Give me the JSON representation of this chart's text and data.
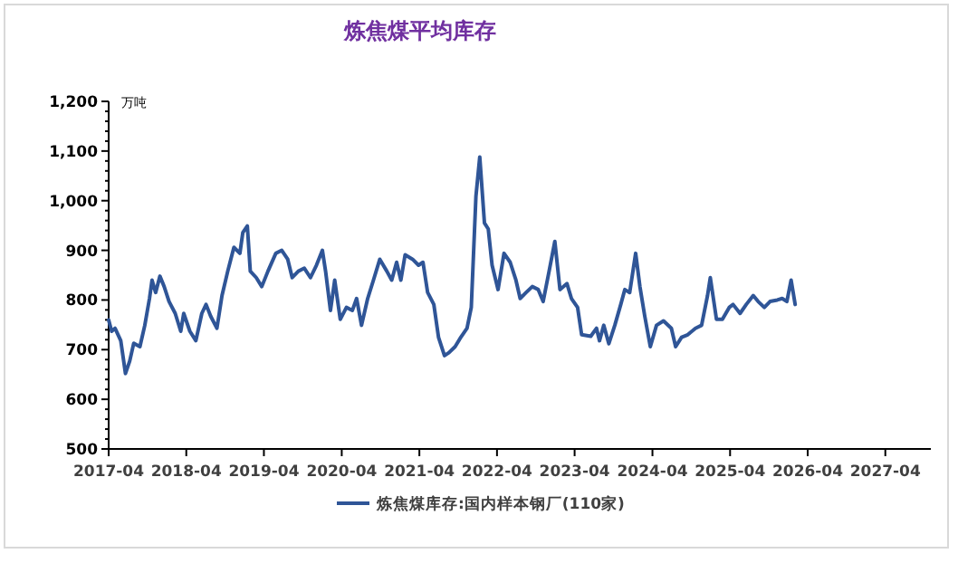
{
  "chart_data": {
    "type": "line",
    "title": "炼焦煤平均库存",
    "ylabel": "万吨",
    "legend": "bottom",
    "grid": false,
    "marker": "none",
    "line_style": "solid",
    "xlim": [
      "2017-04",
      "2027-11"
    ],
    "xticks": [
      "2017-04",
      "2018-04",
      "2019-04",
      "2020-04",
      "2021-04",
      "2022-04",
      "2023-04",
      "2024-04",
      "2025-04",
      "2026-04",
      "2027-04"
    ],
    "ylim": [
      500,
      1200
    ],
    "yticks": [
      {
        "value": 500,
        "label": "500"
      },
      {
        "value": 520,
        "label": null
      },
      {
        "value": 540,
        "label": null
      },
      {
        "value": 560,
        "label": null
      },
      {
        "value": 580,
        "label": null
      },
      {
        "value": 600,
        "label": "600"
      },
      {
        "value": 620,
        "label": null
      },
      {
        "value": 640,
        "label": null
      },
      {
        "value": 660,
        "label": null
      },
      {
        "value": 680,
        "label": null
      },
      {
        "value": 700,
        "label": "700"
      },
      {
        "value": 720,
        "label": null
      },
      {
        "value": 740,
        "label": null
      },
      {
        "value": 760,
        "label": null
      },
      {
        "value": 780,
        "label": null
      },
      {
        "value": 800,
        "label": "800"
      },
      {
        "value": 820,
        "label": null
      },
      {
        "value": 840,
        "label": null
      },
      {
        "value": 860,
        "label": null
      },
      {
        "value": 880,
        "label": null
      },
      {
        "value": 900,
        "label": "900"
      },
      {
        "value": 920,
        "label": null
      },
      {
        "value": 940,
        "label": null
      },
      {
        "value": 960,
        "label": null
      },
      {
        "value": 980,
        "label": null
      },
      {
        "value": 1000,
        "label": "1,000"
      },
      {
        "value": 1020,
        "label": null
      },
      {
        "value": 1040,
        "label": null
      },
      {
        "value": 1060,
        "label": null
      },
      {
        "value": 1080,
        "label": null
      },
      {
        "value": 1100,
        "label": "1,100"
      },
      {
        "value": 1120,
        "label": null
      },
      {
        "value": 1140,
        "label": null
      },
      {
        "value": 1160,
        "label": null
      },
      {
        "value": 1180,
        "label": null
      },
      {
        "value": 1200,
        "label": "1,200"
      }
    ],
    "series": [
      {
        "name": "炼焦煤库存:国内样本钢厂(110家)",
        "color": "#2f5597",
        "x": [
          "2017-04-01",
          "2017-04-15",
          "2017-05-01",
          "2017-05-28",
          "2017-06-19",
          "2017-07-09",
          "2017-07-28",
          "2017-08-26",
          "2017-09-18",
          "2017-10-10",
          "2017-10-22",
          "2017-11-08",
          "2017-11-28",
          "2017-12-18",
          "2018-01-10",
          "2018-02-08",
          "2018-03-06",
          "2018-03-20",
          "2018-04-18",
          "2018-05-16",
          "2018-06-13",
          "2018-07-03",
          "2018-07-25",
          "2018-08-23",
          "2018-09-16",
          "2018-10-13",
          "2018-11-11",
          "2018-12-09",
          "2018-12-23",
          "2019-01-13",
          "2019-01-27",
          "2019-02-24",
          "2019-03-22",
          "2019-04-20",
          "2019-05-27",
          "2019-06-24",
          "2019-07-22",
          "2019-08-12",
          "2019-09-10",
          "2019-10-08",
          "2019-11-06",
          "2019-12-04",
          "2020-01-01",
          "2020-01-16",
          "2020-02-08",
          "2020-02-28",
          "2020-03-25",
          "2020-04-23",
          "2020-05-21",
          "2020-06-10",
          "2020-07-03",
          "2020-08-01",
          "2020-08-28",
          "2020-09-27",
          "2020-10-30",
          "2020-11-22",
          "2020-12-15",
          "2021-01-04",
          "2021-01-24",
          "2021-02-28",
          "2021-03-28",
          "2021-04-18",
          "2021-05-10",
          "2021-06-08",
          "2021-06-30",
          "2021-07-28",
          "2021-08-18",
          "2021-09-16",
          "2021-10-13",
          "2021-11-11",
          "2021-12-01",
          "2021-12-23",
          "2022-01-10",
          "2022-02-01",
          "2022-02-19",
          "2022-03-09",
          "2022-04-06",
          "2022-05-04",
          "2022-06-02",
          "2022-06-29",
          "2022-07-19",
          "2022-08-16",
          "2022-09-14",
          "2022-10-12",
          "2022-11-04",
          "2022-12-02",
          "2022-12-29",
          "2023-01-22",
          "2023-02-24",
          "2023-03-17",
          "2023-04-15",
          "2023-05-04",
          "2023-06-16",
          "2023-07-13",
          "2023-07-27",
          "2023-08-16",
          "2023-09-09",
          "2023-10-07",
          "2023-11-04",
          "2023-11-23",
          "2023-12-16",
          "2024-01-13",
          "2024-02-02",
          "2024-02-25",
          "2024-03-22",
          "2024-04-20",
          "2024-05-23",
          "2024-06-29",
          "2024-07-19",
          "2024-08-16",
          "2024-09-14",
          "2024-10-20",
          "2024-11-18",
          "2024-12-16",
          "2024-12-29",
          "2025-01-27",
          "2025-02-24",
          "2025-03-28",
          "2025-04-15",
          "2025-05-18",
          "2025-06-16",
          "2025-07-19",
          "2025-08-11",
          "2025-09-09",
          "2025-10-06",
          "2025-11-09",
          "2025-12-02",
          "2025-12-24",
          "2026-01-13",
          "2026-02-01"
        ],
        "values": [
          760,
          737,
          743,
          718,
          652,
          677,
          713,
          706,
          749,
          803,
          840,
          815,
          848,
          827,
          797,
          773,
          737,
          773,
          737,
          718,
          773,
          791,
          767,
          743,
          809,
          858,
          906,
          894,
          936,
          949,
          858,
          845,
          827,
          858,
          894,
          900,
          882,
          845,
          858,
          864,
          845,
          870,
          900,
          858,
          779,
          840,
          761,
          785,
          779,
          803,
          749,
          803,
          840,
          882,
          858,
          840,
          876,
          840,
          891,
          882,
          870,
          876,
          815,
          791,
          725,
          688,
          694,
          706,
          725,
          743,
          785,
          1009,
          1088,
          955,
          943,
          870,
          821,
          894,
          876,
          840,
          803,
          815,
          827,
          821,
          797,
          858,
          918,
          821,
          833,
          803,
          785,
          730,
          727,
          743,
          718,
          749,
          712,
          749,
          791,
          821,
          815,
          894,
          827,
          767,
          706,
          749,
          758,
          743,
          706,
          725,
          730,
          743,
          749,
          809,
          845,
          761,
          761,
          785,
          791,
          773,
          791,
          809,
          797,
          785,
          797,
          800,
          803,
          797,
          840,
          791
        ]
      }
    ]
  }
}
